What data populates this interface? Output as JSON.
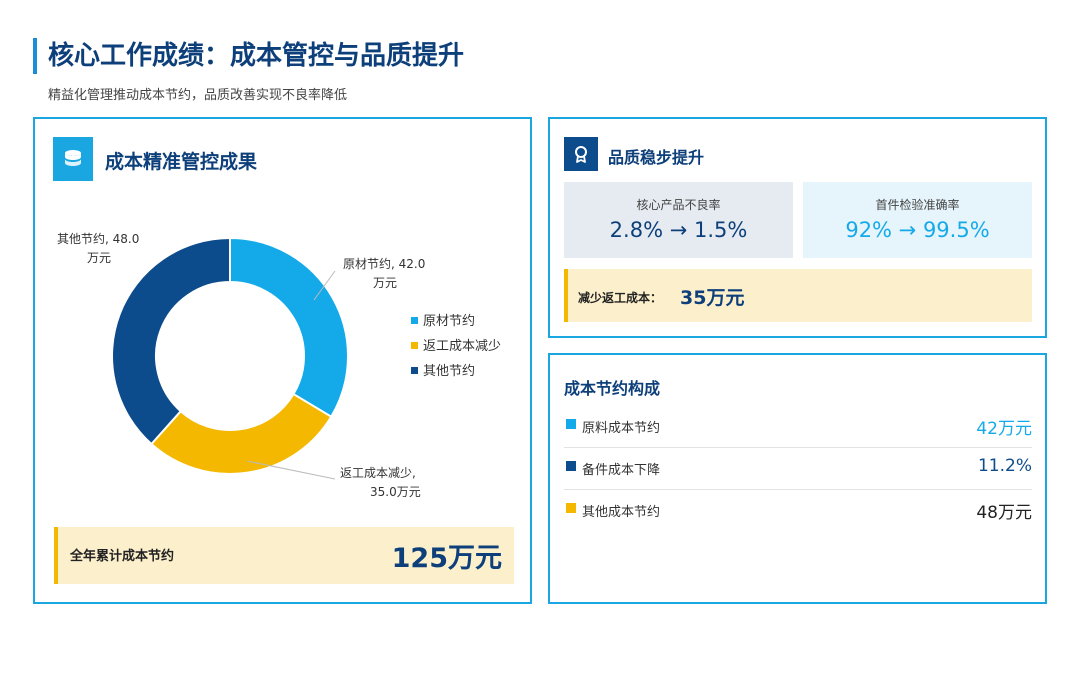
{
  "header": {
    "title": "核心工作成绩：成本管控与品质提升",
    "subtitle": "精益化管理推动成本节约，品质改善实现不良率降低"
  },
  "cost_card": {
    "title": "成本精准管控成果",
    "icon": "coins-icon",
    "total_label": "全年累计成本节约",
    "total_value": "125万元"
  },
  "chart_data": {
    "type": "pie",
    "donut": true,
    "unit": "万元",
    "categories": [
      "原材节约",
      "返工成本减少",
      "其他节约"
    ],
    "values": [
      42.0,
      35.0,
      48.0
    ],
    "colors": [
      "#14aaea",
      "#f5b800",
      "#0d4c8c"
    ],
    "data_labels": [
      [
        "原材节约, 42.0",
        "万元"
      ],
      [
        "返工成本减少,",
        "35.0万元"
      ],
      [
        "其他节约, 48.0",
        "万元"
      ]
    ],
    "legend": [
      "原材节约",
      "返工成本减少",
      "其他节约"
    ],
    "legend_position": "right"
  },
  "quality_card": {
    "title": "品质稳步提升",
    "icon": "award-ribbon-icon",
    "metrics": [
      {
        "label": "核心产品不良率",
        "value": "2.8% → 1.5%",
        "color": "#0d3f7a",
        "bg": "#e6ebf2"
      },
      {
        "label": "首件检验准确率",
        "value": "92% → 99.5%",
        "color": "#14aaea",
        "bg": "#e6f4fb"
      }
    ],
    "rework_label": "减少返工成本：",
    "rework_value": "35万元"
  },
  "composition_card": {
    "title": "成本节约构成",
    "items": [
      {
        "label": "原料成本节约",
        "value": "42万元",
        "color": "#14aaea",
        "value_color": "#14aaea"
      },
      {
        "label": "备件成本下降",
        "value": "11.2%",
        "color": "#0d4c8c",
        "value_color": "#0d4c8c"
      },
      {
        "label": "其他成本节约",
        "value": "48万元",
        "color": "#f5b800",
        "value_color": "#222222"
      }
    ]
  }
}
